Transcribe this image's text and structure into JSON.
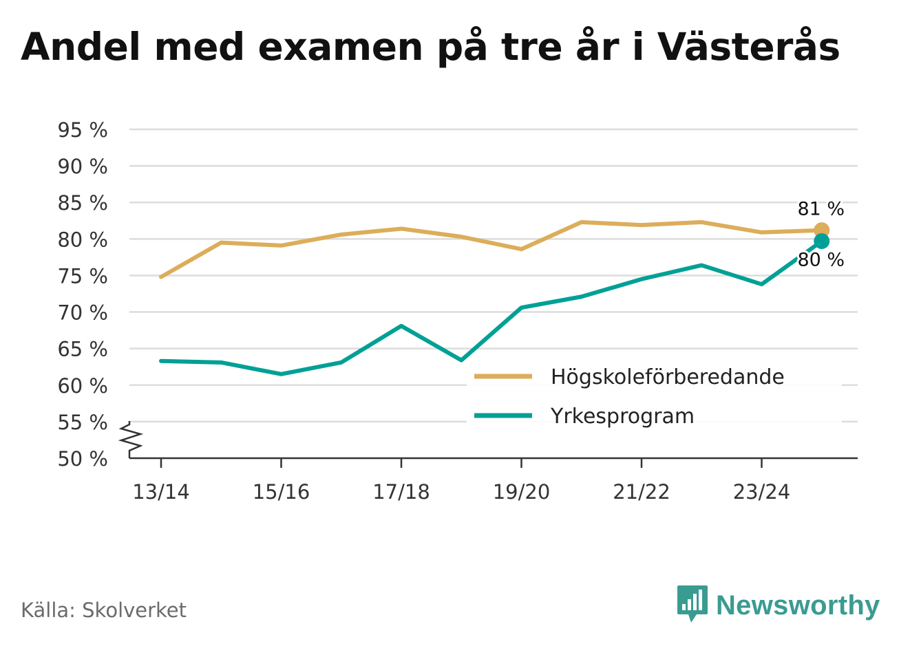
{
  "title": "Andel med examen på tre år i Västerås",
  "source": "Källa: Skolverket",
  "brand": {
    "name": "Newsworthy",
    "icon": "newsworthy-logo-icon",
    "color": "#3a9b91"
  },
  "chart_data": {
    "type": "line",
    "title": "Andel med examen på tre år i Västerås",
    "xlabel": "",
    "ylabel": "",
    "x": [
      "13/14",
      "14/15",
      "15/16",
      "16/17",
      "17/18",
      "18/19",
      "19/20",
      "20/21",
      "21/22",
      "22/23",
      "23/24",
      "24/25"
    ],
    "x_tick_labels": [
      "13/14",
      "15/16",
      "17/18",
      "19/20",
      "21/22",
      "23/24"
    ],
    "y_tick_labels": [
      "50 %",
      "55 %",
      "60 %",
      "65 %",
      "70 %",
      "75 %",
      "80 %",
      "85 %",
      "90 %",
      "95 %"
    ],
    "ylim": [
      50,
      95
    ],
    "y_axis_break": true,
    "grid": "horizontal",
    "legend_position": "bottom-right",
    "series": [
      {
        "name": "Högskoleförberedande",
        "color": "#dcad5a",
        "values": [
          74.8,
          79.5,
          79.1,
          80.6,
          81.4,
          80.3,
          78.6,
          82.3,
          81.9,
          82.3,
          80.9,
          81.2
        ],
        "end_label": "81 %"
      },
      {
        "name": "Yrkesprogram",
        "color": "#00a096",
        "values": [
          63.3,
          63.1,
          61.5,
          63.1,
          68.1,
          63.4,
          70.6,
          72.1,
          74.5,
          76.4,
          73.8,
          79.7
        ],
        "end_label": "80 %"
      }
    ]
  }
}
